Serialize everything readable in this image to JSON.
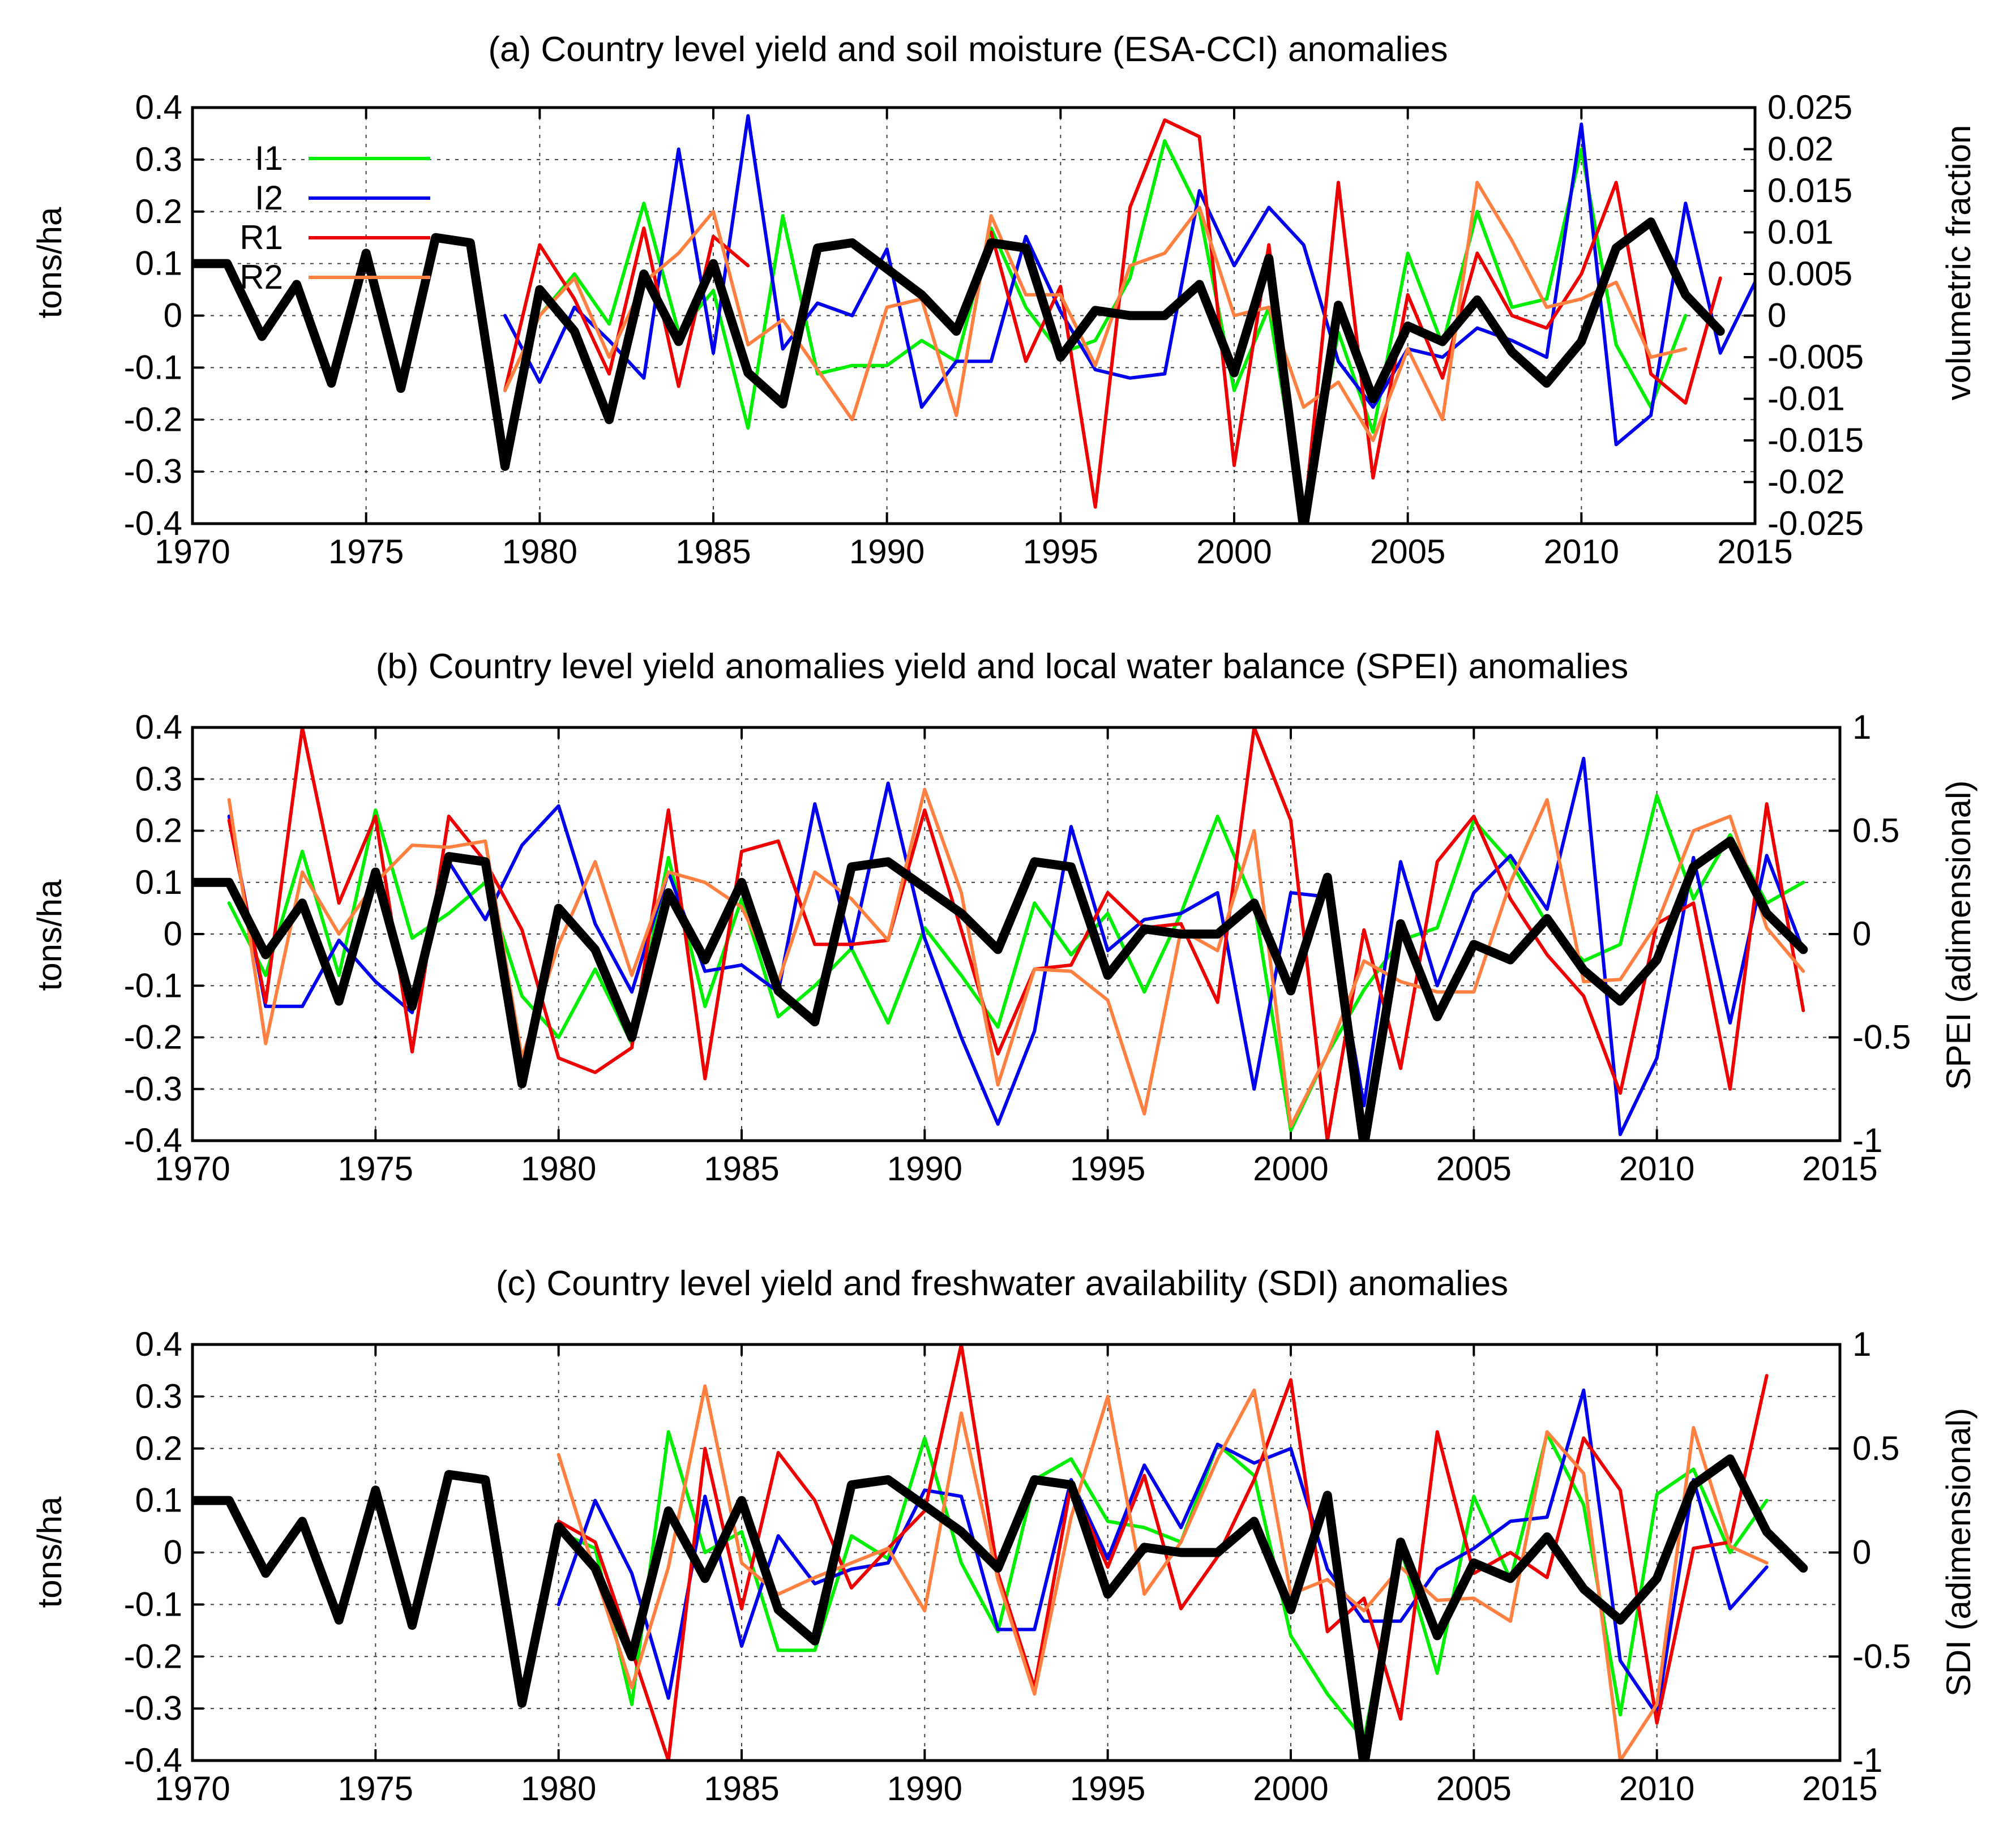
{
  "colors": {
    "yield": "#000000",
    "I1": "#00ee00",
    "I2": "#0000ee",
    "R1": "#ee0000",
    "R2": "#ff8040"
  },
  "legend": {
    "I1": "I1",
    "I2": "I2",
    "R1": "R1",
    "R2": "R2"
  },
  "yield_series": {
    "name": "Country level yield",
    "x": [
      1970,
      1971,
      1972,
      1973,
      1974,
      1975,
      1976,
      1977,
      1978,
      1979,
      1980,
      1981,
      1982,
      1983,
      1984,
      1985,
      1986,
      1987,
      1988,
      1989,
      1990,
      1991,
      1992,
      1993,
      1994,
      1995,
      1996,
      1997,
      1998,
      1999,
      2000,
      2001,
      2002,
      2003,
      2004,
      2005,
      2006,
      2007,
      2008,
      2009,
      2010,
      2011,
      2012,
      2013,
      2014
    ],
    "values": [
      0.1,
      0.1,
      -0.04,
      0.06,
      -0.13,
      0.12,
      -0.14,
      0.15,
      0.14,
      -0.29,
      0.05,
      -0.03,
      -0.2,
      0.08,
      -0.05,
      0.1,
      -0.11,
      -0.17,
      0.13,
      0.14,
      0.09,
      0.04,
      -0.03,
      0.14,
      0.13,
      -0.08,
      0.01,
      0.0,
      0.0,
      0.06,
      -0.11,
      0.11,
      -0.41,
      0.02,
      -0.16,
      -0.02,
      -0.05,
      0.03,
      -0.07,
      -0.13,
      -0.05,
      0.13,
      0.18,
      0.04,
      -0.03
    ]
  },
  "chart_data": [
    {
      "type": "line",
      "title": "(a) Country level yield and soil moisture (ESA-CCI) anomalies",
      "xlabel": "",
      "ylabel": "tons/ha",
      "y2label": "volumetric fraction",
      "xlim": [
        1970,
        2015
      ],
      "ylim": [
        -0.4,
        0.4
      ],
      "y2lim": [
        -0.025,
        0.025
      ],
      "xticks": [
        "1970",
        "1975",
        "1980",
        "1985",
        "1990",
        "1995",
        "2000",
        "2005",
        "2010",
        "2015"
      ],
      "yticks": [
        "0.4",
        "0.3",
        "0.2",
        "0.1",
        "0",
        "-0.1",
        "-0.2",
        "-0.3",
        "-0.4"
      ],
      "y2ticks": [
        "0.025",
        "0.02",
        "0.015",
        "0.01",
        "0.005",
        "0",
        "-0.005",
        "-0.01",
        "-0.015",
        "-0.02",
        "-0.025"
      ],
      "legend_position": "top-left",
      "series": [
        {
          "name": "I1",
          "axis": "right",
          "start": 1979,
          "values": [
            -0.009,
            0.0,
            0.005,
            -0.001,
            0.0135,
            -0.002,
            0.003,
            -0.0135,
            0.012,
            -0.007,
            -0.006,
            -0.006,
            -0.003,
            -0.0055,
            0.0105,
            0.001,
            -0.0045,
            -0.003,
            0.0045,
            0.021,
            0.0125,
            -0.009,
            0.001,
            -0.025,
            -0.002,
            -0.014,
            0.0075,
            -0.0035,
            0.0125,
            0.001,
            0.002,
            0.02,
            -0.0035,
            -0.011,
            0.0
          ]
        },
        {
          "name": "I2",
          "axis": "right",
          "start": 1979,
          "values": [
            0.0,
            -0.008,
            0.001,
            -0.003,
            -0.0075,
            0.02,
            -0.0045,
            0.024,
            -0.004,
            0.0015,
            0.0,
            0.008,
            -0.011,
            -0.0055,
            -0.0055,
            0.0095,
            0.0005,
            -0.0065,
            -0.0075,
            -0.007,
            0.015,
            0.006,
            0.013,
            0.0085,
            -0.0055,
            -0.011,
            -0.004,
            -0.005,
            -0.0015,
            -0.003,
            -0.005,
            0.023,
            -0.0155,
            -0.012,
            0.0135,
            -0.0045,
            0.004
          ]
        },
        {
          "name": "R1",
          "axis": "right",
          "start": 1979,
          "values": [
            -0.009,
            0.0085,
            0.002,
            -0.007,
            0.0105,
            -0.0085,
            0.0095,
            0.006
          ]
        },
        {
          "name": "R1",
          "axis": "right",
          "start": 1993,
          "values": [
            0.01,
            -0.0055,
            0.0035,
            -0.023,
            0.013,
            0.0235,
            0.0215,
            -0.018,
            0.0085,
            -0.025,
            0.016,
            -0.0195,
            0.0025,
            -0.0075,
            0.0075,
            0.0,
            -0.0015,
            0.005,
            0.016,
            -0.007,
            -0.0105,
            0.0045
          ]
        },
        {
          "name": "R2",
          "axis": "right",
          "start": 1979,
          "values": [
            -0.009,
            0.0,
            0.0045,
            -0.005,
            0.004,
            0.0075,
            0.0125,
            -0.0035,
            -0.0005,
            -0.0065,
            -0.0125,
            0.001,
            0.002,
            -0.012,
            0.012,
            0.0025,
            0.0025,
            -0.006,
            0.006,
            0.0075,
            0.013,
            0.0,
            0.001,
            -0.011,
            -0.008,
            -0.015,
            -0.004,
            -0.0125,
            0.016,
            0.009,
            0.001,
            0.002,
            0.004,
            -0.005,
            -0.004
          ]
        }
      ]
    },
    {
      "type": "line",
      "title": "(b) Country level yield anomalies yield and local water balance (SPEI) anomalies",
      "xlabel": "",
      "ylabel": "tons/ha",
      "y2label": "SPEI (adimensional)",
      "xlim": [
        1970,
        2015
      ],
      "ylim": [
        -0.4,
        0.4
      ],
      "y2lim": [
        -1,
        1
      ],
      "xticks": [
        "1970",
        "1975",
        "1980",
        "1985",
        "1990",
        "1995",
        "2000",
        "2005",
        "2010",
        "2015"
      ],
      "yticks": [
        "0.4",
        "0.3",
        "0.2",
        "0.1",
        "0",
        "-0.1",
        "-0.2",
        "-0.3",
        "-0.4"
      ],
      "y2ticks": [
        "1",
        "0.5",
        "0",
        "-0.5",
        "-1"
      ],
      "series": [
        {
          "name": "I1",
          "axis": "right",
          "start": 1971,
          "values": [
            0.15,
            -0.2,
            0.4,
            -0.2,
            0.6,
            -0.02,
            0.1,
            0.25,
            -0.3,
            -0.5,
            -0.17,
            -0.53,
            0.37,
            -0.35,
            0.17,
            -0.4,
            -0.25,
            -0.07,
            -0.43,
            0.03,
            -0.2,
            -0.45,
            0.15,
            -0.1,
            0.1,
            -0.28,
            0.1,
            0.57,
            0.15,
            -0.95,
            -0.58,
            -0.27,
            -0.03,
            0.03,
            0.55,
            0.35,
            0.05,
            -0.13,
            -0.05,
            0.67,
            0.17,
            0.48,
            0.15,
            0.25
          ]
        },
        {
          "name": "I2",
          "axis": "right",
          "start": 1971,
          "values": [
            0.57,
            -0.35,
            -0.35,
            -0.03,
            -0.23,
            -0.38,
            0.35,
            0.07,
            0.43,
            0.62,
            0.05,
            -0.28,
            0.3,
            -0.18,
            -0.15,
            -0.28,
            0.63,
            -0.07,
            0.73,
            -0.02,
            -0.5,
            -0.92,
            -0.47,
            0.52,
            -0.08,
            0.07,
            0.1,
            0.2,
            -0.75,
            0.2,
            0.18,
            -0.83,
            0.35,
            -0.25,
            0.2,
            0.38,
            0.12,
            0.85,
            -0.97,
            -0.6,
            0.37,
            -0.43,
            0.38,
            -0.08
          ]
        },
        {
          "name": "R1",
          "axis": "right",
          "start": 1971,
          "values": [
            0.55,
            -0.33,
            1.0,
            0.15,
            0.57,
            -0.57,
            0.57,
            0.35,
            0.02,
            -0.6,
            -0.67,
            -0.55,
            0.6,
            -0.7,
            0.4,
            0.45,
            -0.05,
            -0.05,
            -0.03,
            0.6,
            0.02,
            -0.58,
            -0.17,
            -0.15,
            0.2,
            0.03,
            0.05,
            -0.33,
            1.0,
            0.55,
            -1.0,
            0.02,
            -0.65,
            0.35,
            0.57,
            0.17,
            -0.1,
            -0.3,
            -0.77,
            0.05,
            0.15,
            -0.75,
            0.63,
            -0.37
          ]
        },
        {
          "name": "R2",
          "axis": "right",
          "start": 1971,
          "values": [
            0.65,
            -0.53,
            0.3,
            0.0,
            0.25,
            0.43,
            0.42,
            0.45,
            -0.6,
            -0.05,
            0.35,
            -0.2,
            0.3,
            0.25,
            0.13,
            -0.23,
            0.3,
            0.17,
            -0.03,
            0.7,
            0.2,
            -0.73,
            -0.17,
            -0.18,
            -0.32,
            -0.87,
            0.02,
            -0.08,
            0.5,
            -0.93,
            -0.58,
            -0.13,
            -0.23,
            -0.28,
            -0.28,
            0.25,
            0.65,
            -0.23,
            -0.22,
            0.05,
            0.5,
            0.57,
            0.03,
            -0.18
          ]
        }
      ]
    },
    {
      "type": "line",
      "title": "(c) Country level yield and freshwater availability (SDI) anomalies",
      "xlabel": "",
      "ylabel": "tons/ha",
      "y2label": "SDI (adimensional)",
      "xlim": [
        1970,
        2015
      ],
      "ylim": [
        -0.4,
        0.4
      ],
      "y2lim": [
        -1,
        1
      ],
      "xticks": [
        "1970",
        "1975",
        "1980",
        "1985",
        "1990",
        "1995",
        "2000",
        "2005",
        "2010",
        "2015"
      ],
      "yticks": [
        "0.4",
        "0.3",
        "0.2",
        "0.1",
        "0",
        "-0.1",
        "-0.2",
        "-0.3",
        "-0.4"
      ],
      "y2ticks": [
        "1",
        "0.5",
        "0",
        "-0.5",
        "-1"
      ],
      "series": [
        {
          "name": "I1",
          "axis": "right",
          "start": 1980,
          "values": [
            0.1,
            0.02,
            -0.73,
            0.58,
            0.0,
            0.1,
            -0.47,
            -0.47,
            0.08,
            -0.03,
            0.55,
            -0.05,
            -0.38,
            0.35,
            0.45,
            0.15,
            0.12,
            0.05,
            0.52,
            0.37,
            -0.4,
            -0.68,
            -0.9,
            0.02,
            -0.58,
            0.27,
            -0.13,
            0.57,
            0.23,
            -0.78,
            0.28,
            0.4,
            0.0,
            0.25
          ]
        },
        {
          "name": "I2",
          "axis": "right",
          "start": 1980,
          "values": [
            -0.25,
            0.25,
            -0.1,
            -0.7,
            0.27,
            -0.45,
            0.08,
            -0.15,
            -0.08,
            -0.05,
            0.3,
            0.27,
            -0.37,
            -0.37,
            0.35,
            -0.03,
            0.42,
            0.12,
            0.52,
            0.43,
            0.5,
            -0.08,
            -0.33,
            -0.33,
            -0.08,
            0.02,
            0.15,
            0.17,
            0.78,
            -0.52,
            -0.78,
            0.35,
            -0.27,
            -0.07
          ]
        },
        {
          "name": "R1",
          "axis": "right",
          "start": 1980,
          "values": [
            0.15,
            0.05,
            -0.47,
            -1.0,
            0.5,
            -0.27,
            0.48,
            0.25,
            -0.17,
            0.02,
            0.2,
            1.0,
            -0.1,
            -0.65,
            0.33,
            -0.07,
            0.37,
            -0.27,
            -0.02,
            0.35,
            0.83,
            -0.38,
            -0.22,
            -0.8,
            0.58,
            -0.1,
            0.0,
            -0.12,
            0.55,
            0.3,
            -0.82,
            0.02,
            0.05,
            0.85
          ]
        },
        {
          "name": "R2",
          "axis": "right",
          "start": 1980,
          "values": [
            0.47,
            -0.1,
            -0.65,
            -0.07,
            0.8,
            -0.05,
            -0.2,
            -0.12,
            -0.05,
            0.02,
            -0.28,
            0.67,
            -0.13,
            -0.68,
            0.17,
            0.75,
            -0.2,
            0.05,
            0.45,
            0.78,
            -0.2,
            -0.13,
            -0.28,
            -0.07,
            -0.23,
            -0.22,
            -0.33,
            0.58,
            0.38,
            -1.0,
            -0.73,
            0.6,
            0.03,
            -0.05
          ]
        }
      ]
    }
  ]
}
